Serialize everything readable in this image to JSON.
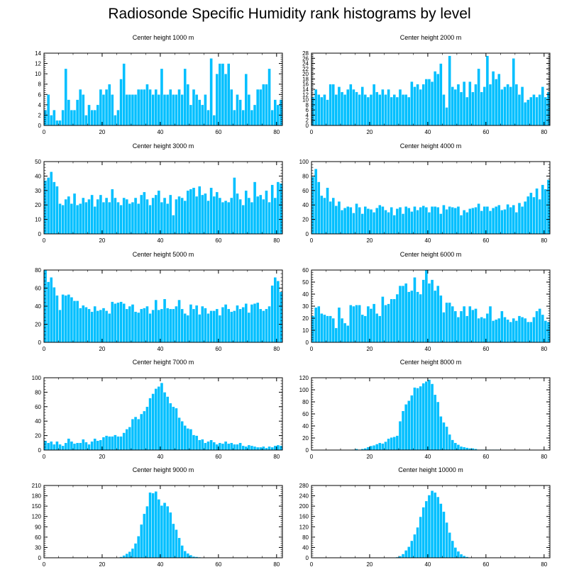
{
  "title": "Radiosonde Specific Humidity rank histograms by level",
  "colors": {
    "bar": "#00bfff",
    "bar_edge": "#ffffff",
    "axis": "#000000"
  },
  "chart_data": [
    {
      "type": "bar",
      "title": "Center height 1000 m",
      "xlim": [
        0,
        82
      ],
      "ylim": [
        0,
        14
      ],
      "xticks": [
        0,
        20,
        40,
        60,
        80
      ],
      "yticks": [
        0,
        2,
        4,
        6,
        8,
        10,
        12,
        14
      ],
      "values": [
        3,
        6,
        2,
        3,
        1,
        1,
        3,
        11,
        5,
        3,
        3,
        5,
        7,
        6,
        2,
        4,
        3,
        3,
        4,
        7,
        6,
        7,
        8,
        6,
        2,
        3,
        9,
        12,
        6,
        6,
        6,
        6,
        7,
        7,
        7,
        8,
        7,
        6,
        7,
        6,
        11,
        6,
        6,
        7,
        6,
        6,
        7,
        6,
        11,
        8,
        4,
        7,
        6,
        5,
        4,
        6,
        3,
        13,
        2,
        10,
        12,
        12,
        10,
        12,
        7,
        3,
        6,
        5,
        3,
        10,
        6,
        3,
        4,
        7,
        7,
        8,
        8,
        11,
        3,
        5,
        4,
        5
      ]
    },
    {
      "type": "bar",
      "title": "Center height 2000 m",
      "xlim": [
        0,
        82
      ],
      "ylim": [
        0,
        28
      ],
      "xticks": [
        0,
        20,
        40,
        60,
        80
      ],
      "yticks": [
        0,
        2,
        4,
        6,
        8,
        10,
        12,
        14,
        16,
        18,
        20,
        22,
        24,
        26,
        28
      ],
      "values": [
        11,
        14,
        12,
        11,
        12,
        10,
        16,
        16,
        12,
        15,
        13,
        12,
        14,
        16,
        14,
        13,
        12,
        15,
        12,
        11,
        12,
        16,
        13,
        12,
        14,
        12,
        14,
        11,
        12,
        11,
        14,
        12,
        12,
        11,
        17,
        15,
        16,
        14,
        16,
        18,
        18,
        17,
        21,
        20,
        24,
        12,
        7,
        27,
        15,
        14,
        16,
        13,
        17,
        11,
        17,
        13,
        16,
        22,
        13,
        15,
        27,
        16,
        21,
        18,
        20,
        14,
        15,
        16,
        15,
        26,
        16,
        12,
        15,
        9,
        10,
        11,
        12,
        11,
        12,
        15,
        11,
        13
      ]
    },
    {
      "type": "bar",
      "title": "Center height 3000 m",
      "xlim": [
        0,
        82
      ],
      "ylim": [
        0,
        50
      ],
      "xticks": [
        0,
        20,
        40,
        60,
        80
      ],
      "yticks": [
        0,
        10,
        20,
        30,
        40,
        50
      ],
      "values": [
        37,
        39,
        43,
        36,
        33,
        21,
        20,
        24,
        26,
        21,
        28,
        20,
        21,
        25,
        22,
        24,
        27,
        19,
        24,
        27,
        22,
        25,
        22,
        31,
        25,
        22,
        20,
        25,
        24,
        21,
        22,
        25,
        21,
        27,
        29,
        24,
        20,
        25,
        27,
        30,
        22,
        25,
        21,
        27,
        13,
        24,
        26,
        25,
        23,
        30,
        31,
        32,
        26,
        33,
        27,
        28,
        23,
        32,
        26,
        29,
        25,
        22,
        23,
        22,
        25,
        39,
        28,
        24,
        20,
        30,
        25,
        22,
        36,
        26,
        27,
        24,
        30,
        22,
        34,
        25,
        36,
        35
      ]
    },
    {
      "type": "bar",
      "title": "Center height 4000 m",
      "xlim": [
        0,
        82
      ],
      "ylim": [
        0,
        100
      ],
      "xticks": [
        0,
        20,
        40,
        60,
        80
      ],
      "yticks": [
        0,
        20,
        40,
        60,
        80,
        100
      ],
      "values": [
        79,
        90,
        72,
        53,
        50,
        64,
        45,
        50,
        39,
        45,
        33,
        36,
        38,
        37,
        29,
        42,
        37,
        28,
        38,
        35,
        34,
        30,
        36,
        40,
        38,
        33,
        30,
        37,
        26,
        35,
        37,
        28,
        38,
        36,
        31,
        38,
        33,
        37,
        39,
        37,
        30,
        38,
        38,
        37,
        28,
        40,
        34,
        38,
        37,
        36,
        38,
        26,
        33,
        30,
        35,
        36,
        37,
        42,
        32,
        38,
        38,
        32,
        36,
        38,
        40,
        33,
        34,
        41,
        37,
        40,
        30,
        43,
        38,
        45,
        52,
        57,
        51,
        63,
        48,
        68,
        62,
        75
      ]
    },
    {
      "type": "bar",
      "title": "Center height 5000 m",
      "xlim": [
        0,
        82
      ],
      "ylim": [
        0,
        80
      ],
      "xticks": [
        0,
        20,
        40,
        60,
        80
      ],
      "yticks": [
        0,
        20,
        40,
        60,
        80
      ],
      "values": [
        80,
        67,
        72,
        61,
        52,
        36,
        53,
        52,
        53,
        50,
        46,
        46,
        38,
        41,
        39,
        37,
        34,
        40,
        35,
        36,
        38,
        35,
        32,
        45,
        43,
        44,
        45,
        43,
        37,
        40,
        42,
        34,
        33,
        37,
        38,
        40,
        32,
        36,
        47,
        36,
        37,
        48,
        38,
        37,
        37,
        40,
        47,
        37,
        32,
        30,
        42,
        37,
        41,
        31,
        40,
        38,
        32,
        35,
        35,
        37,
        30,
        39,
        42,
        37,
        34,
        35,
        41,
        37,
        39,
        43,
        33,
        42,
        43,
        44,
        37,
        35,
        37,
        40,
        63,
        72,
        68,
        56
      ]
    },
    {
      "type": "bar",
      "title": "Center height 6000 m",
      "xlim": [
        0,
        82
      ],
      "ylim": [
        0,
        60
      ],
      "xticks": [
        0,
        20,
        40,
        60,
        80
      ],
      "yticks": [
        0,
        10,
        20,
        30,
        40,
        50,
        60
      ],
      "values": [
        22,
        29,
        30,
        24,
        23,
        22,
        22,
        20,
        12,
        29,
        20,
        16,
        14,
        31,
        30,
        31,
        31,
        23,
        22,
        30,
        28,
        32,
        24,
        22,
        38,
        31,
        32,
        36,
        36,
        40,
        47,
        47,
        49,
        42,
        43,
        54,
        42,
        40,
        52,
        60,
        49,
        52,
        43,
        47,
        39,
        25,
        33,
        33,
        30,
        26,
        21,
        26,
        30,
        22,
        30,
        27,
        28,
        20,
        21,
        20,
        24,
        30,
        18,
        19,
        20,
        26,
        21,
        19,
        17,
        20,
        18,
        22,
        21,
        20,
        17,
        17,
        21,
        26,
        28,
        23,
        18,
        17
      ]
    },
    {
      "type": "bar",
      "title": "Center height 7000 m",
      "xlim": [
        0,
        82
      ],
      "ylim": [
        0,
        100
      ],
      "xticks": [
        0,
        20,
        40,
        60,
        80
      ],
      "yticks": [
        0,
        20,
        40,
        60,
        80,
        100
      ],
      "values": [
        13,
        10,
        12,
        8,
        12,
        8,
        6,
        10,
        16,
        12,
        9,
        10,
        10,
        15,
        11,
        8,
        12,
        16,
        13,
        14,
        18,
        20,
        19,
        19,
        21,
        19,
        19,
        24,
        29,
        32,
        43,
        46,
        43,
        50,
        54,
        60,
        72,
        78,
        85,
        88,
        93,
        80,
        74,
        65,
        60,
        58,
        45,
        40,
        34,
        30,
        29,
        21,
        20,
        14,
        15,
        10,
        12,
        14,
        11,
        8,
        10,
        9,
        12,
        9,
        10,
        8,
        8,
        10,
        6,
        5,
        7,
        6,
        5,
        4,
        4,
        5,
        3,
        5,
        4,
        6,
        7,
        6
      ]
    },
    {
      "type": "bar",
      "title": "Center height 8000 m",
      "xlim": [
        0,
        82
      ],
      "ylim": [
        0,
        120
      ],
      "xticks": [
        0,
        20,
        40,
        60,
        80
      ],
      "yticks": [
        0,
        20,
        40,
        60,
        80,
        100,
        120
      ],
      "values": [
        0,
        0,
        0,
        0,
        0,
        0,
        0,
        0,
        0,
        0,
        0,
        0,
        0,
        0,
        1,
        2,
        1,
        2,
        3,
        5,
        7,
        8,
        10,
        12,
        11,
        14,
        19,
        21,
        22,
        24,
        48,
        65,
        76,
        82,
        91,
        104,
        103,
        106,
        111,
        114,
        117,
        110,
        92,
        80,
        56,
        46,
        39,
        26,
        17,
        12,
        9,
        6,
        5,
        4,
        3,
        3,
        2,
        1,
        1,
        1,
        1,
        1,
        1,
        1,
        1,
        0,
        0,
        0,
        0,
        0,
        0,
        0,
        0,
        0,
        0,
        0,
        0,
        0,
        0,
        0,
        0,
        0
      ]
    },
    {
      "type": "bar",
      "title": "Center height 9000 m",
      "xlim": [
        0,
        82
      ],
      "ylim": [
        0,
        210
      ],
      "xticks": [
        0,
        20,
        40,
        60,
        80
      ],
      "yticks": [
        0,
        30,
        60,
        90,
        120,
        150,
        180,
        210
      ],
      "values": [
        0,
        0,
        0,
        0,
        0,
        0,
        0,
        0,
        0,
        0,
        0,
        0,
        0,
        0,
        0,
        0,
        0,
        0,
        0,
        0,
        0,
        0,
        0,
        0,
        0,
        0,
        3,
        7,
        12,
        18,
        27,
        42,
        63,
        97,
        128,
        150,
        190,
        188,
        193,
        170,
        152,
        160,
        150,
        132,
        99,
        82,
        58,
        36,
        20,
        13,
        8,
        4,
        3,
        2,
        1,
        1,
        1,
        0,
        0,
        0,
        0,
        0,
        0,
        0,
        0,
        0,
        0,
        0,
        0,
        0,
        0,
        0,
        0,
        0,
        0,
        0,
        0,
        0,
        0,
        0,
        0,
        0
      ]
    },
    {
      "type": "bar",
      "title": "Center height 10000 m",
      "xlim": [
        0,
        82
      ],
      "ylim": [
        0,
        280
      ],
      "xticks": [
        0,
        20,
        40,
        60,
        80
      ],
      "yticks": [
        0,
        40,
        80,
        120,
        160,
        200,
        240,
        280
      ],
      "values": [
        0,
        0,
        0,
        0,
        0,
        0,
        0,
        0,
        0,
        0,
        0,
        0,
        0,
        0,
        0,
        0,
        0,
        0,
        0,
        0,
        0,
        0,
        0,
        0,
        0,
        0,
        0,
        0,
        1,
        3,
        7,
        15,
        29,
        43,
        66,
        91,
        118,
        159,
        196,
        220,
        243,
        260,
        253,
        236,
        210,
        179,
        137,
        98,
        66,
        40,
        25,
        14,
        8,
        4,
        2,
        1,
        1,
        0,
        0,
        0,
        0,
        0,
        0,
        0,
        0,
        0,
        0,
        0,
        0,
        0,
        0,
        0,
        0,
        0,
        0,
        0,
        0,
        0,
        0,
        0,
        0,
        0
      ]
    }
  ]
}
